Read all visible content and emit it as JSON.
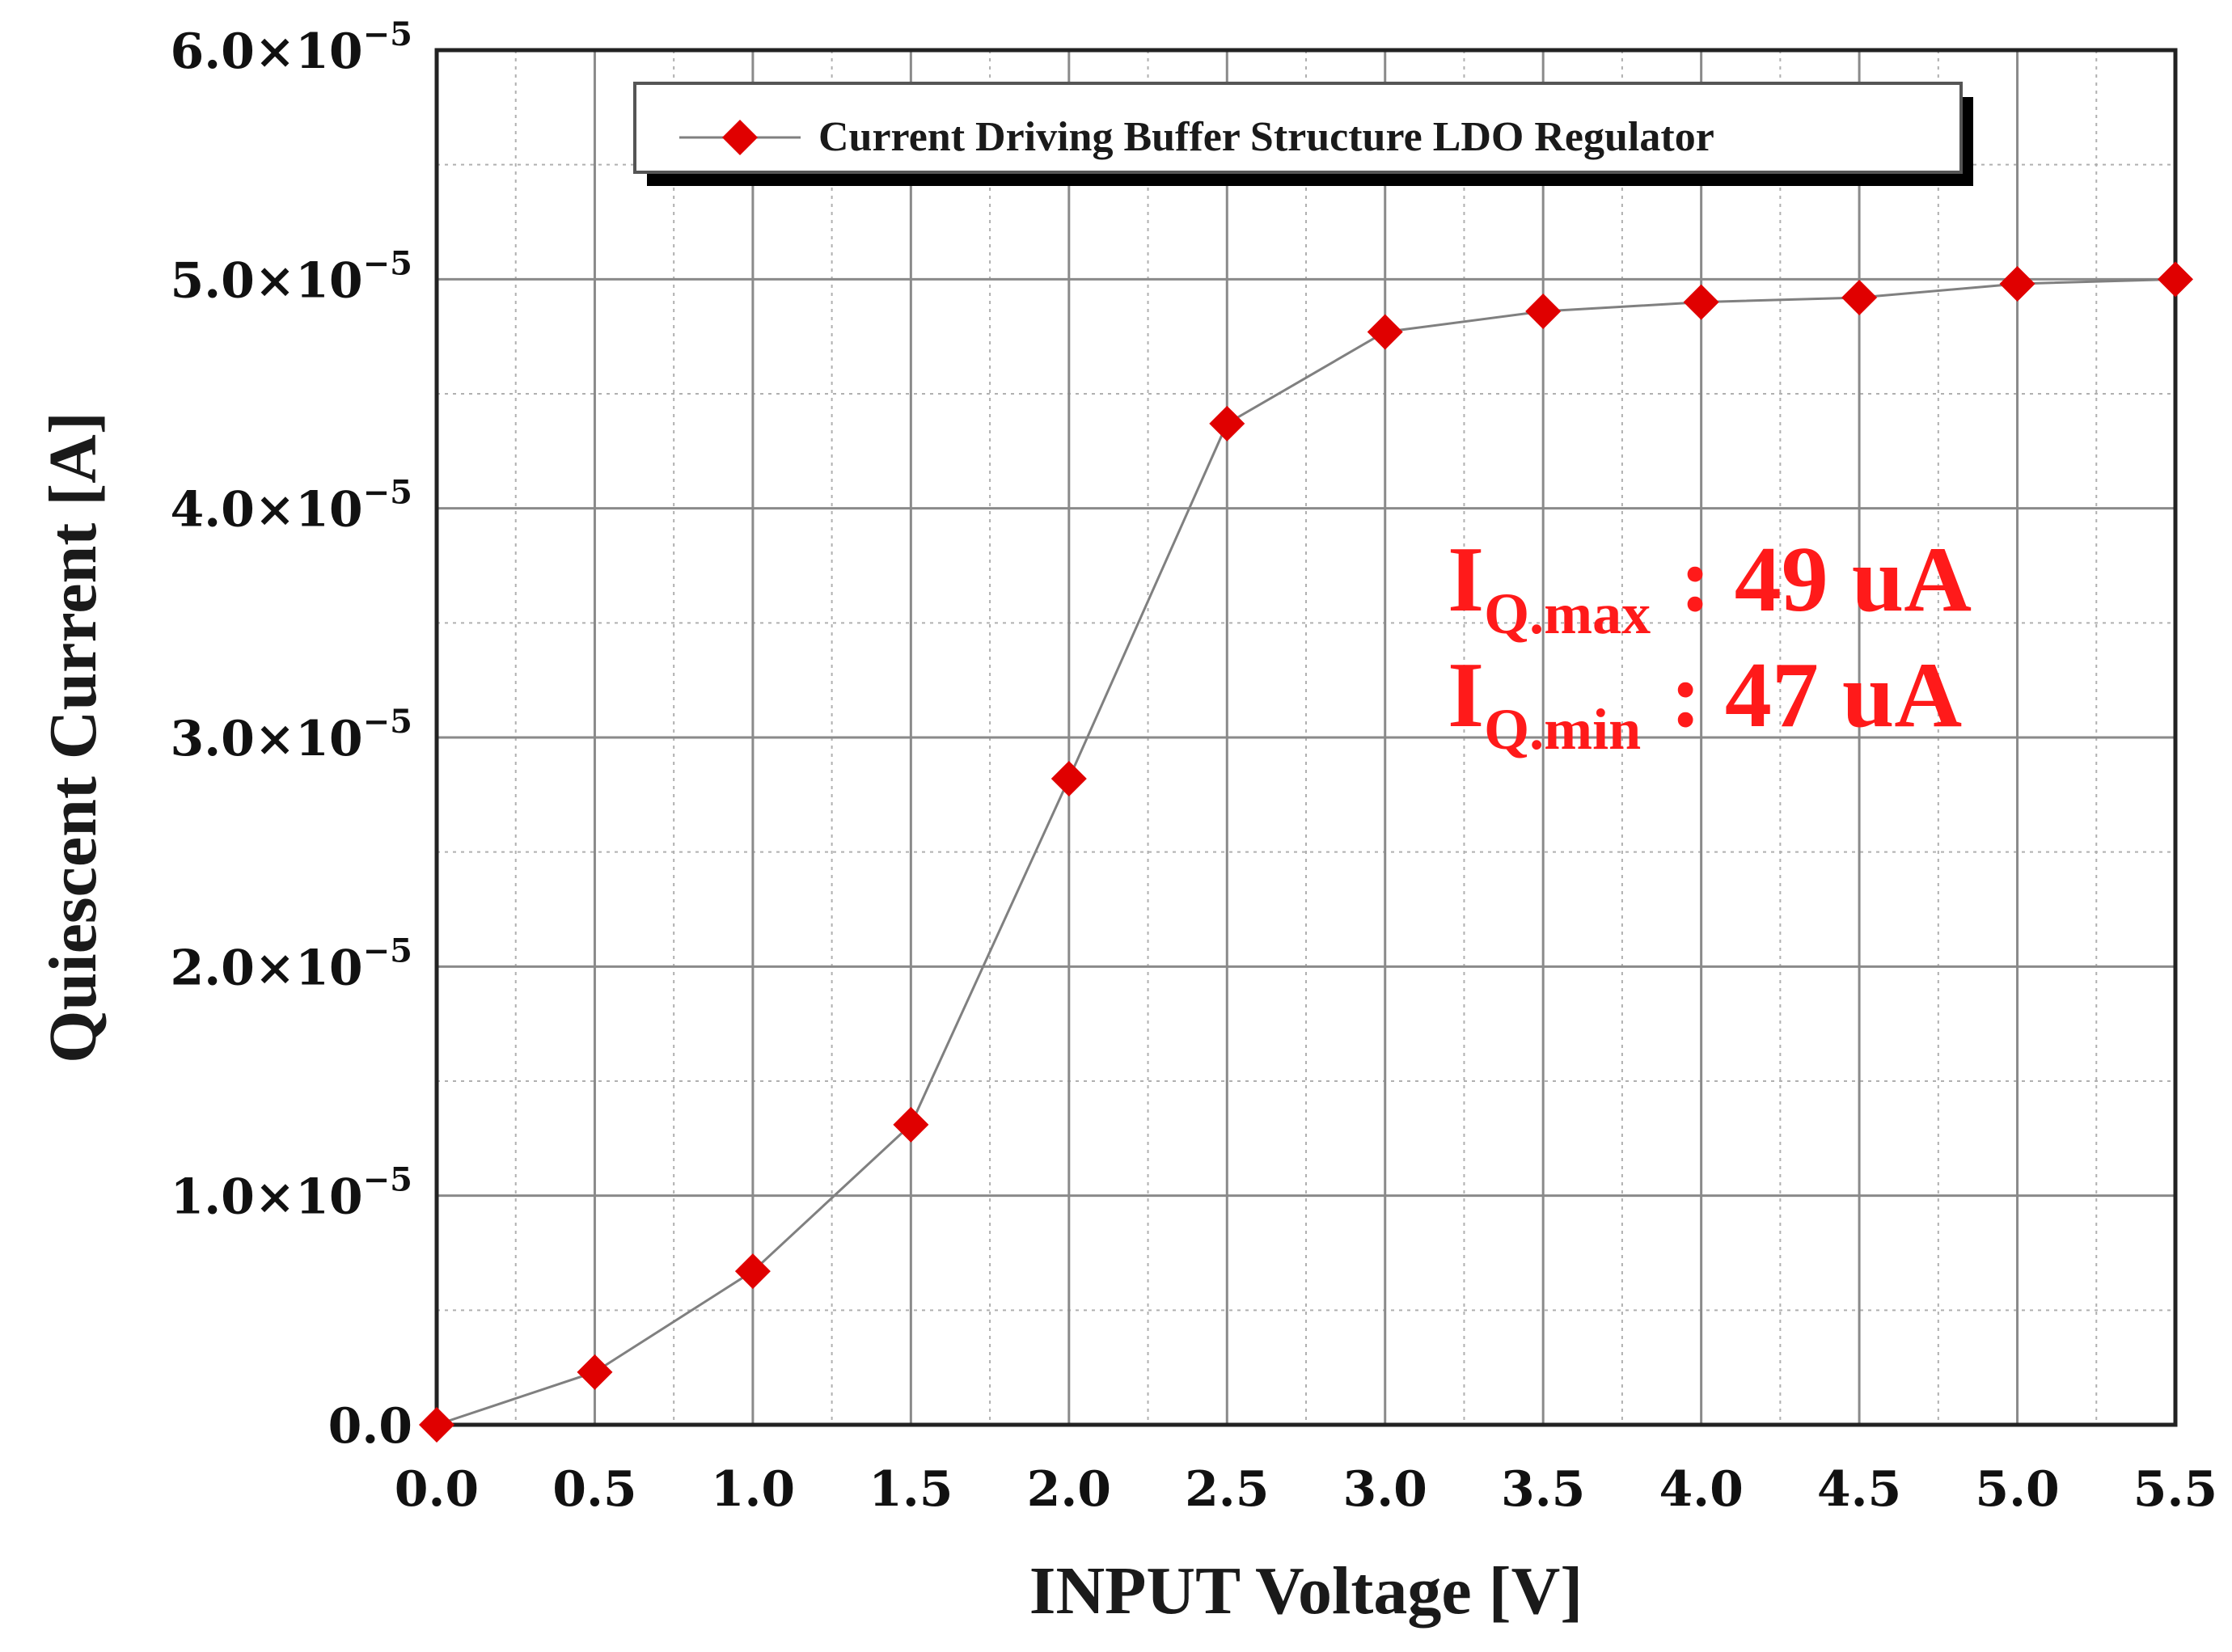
{
  "chart_data": {
    "type": "line",
    "title": "",
    "xlabel": "INPUT Voltage [V]",
    "ylabel": "Quiescent Current [A]",
    "xlim": [
      0,
      5.5
    ],
    "ylim": [
      0,
      6e-05
    ],
    "grid": true,
    "legend_position": "top",
    "x_tick_labels": [
      "0.0",
      "0.5",
      "1.0",
      "1.5",
      "2.0",
      "2.5",
      "3.0",
      "3.5",
      "4.0",
      "4.5",
      "5.0",
      "5.5"
    ],
    "y_tick_labels": [
      {
        "mantissa": "0.0",
        "exp": ""
      },
      {
        "mantissa": "1.0×10",
        "exp": "−5"
      },
      {
        "mantissa": "2.0×10",
        "exp": "−5"
      },
      {
        "mantissa": "3.0×10",
        "exp": "−5"
      },
      {
        "mantissa": "4.0×10",
        "exp": "−5"
      },
      {
        "mantissa": "5.0×10",
        "exp": "−5"
      },
      {
        "mantissa": "6.0×10",
        "exp": "−5"
      }
    ],
    "series": [
      {
        "name": "Current Driving Buffer Structure LDO Regulator",
        "color": "#e00000",
        "line_color": "#808080",
        "marker": "diamond",
        "x": [
          0.0,
          0.5,
          1.0,
          1.5,
          2.0,
          2.5,
          3.0,
          3.5,
          4.0,
          4.5,
          5.0,
          5.5
        ],
        "y": [
          0.0,
          2.3e-06,
          6.7e-06,
          1.31e-05,
          2.82e-05,
          4.37e-05,
          4.77e-05,
          4.86e-05,
          4.9e-05,
          4.92e-05,
          4.98e-05,
          5e-05
        ]
      }
    ],
    "annotations": [
      {
        "main": "I",
        "sub": "Q.max",
        "value": ": 49 uA"
      },
      {
        "main": "I",
        "sub": "Q.min",
        "value": ": 47 uA"
      }
    ],
    "colors": {
      "annotation": "#ff1a1a",
      "marker": "#e00000",
      "line": "#808080"
    }
  }
}
